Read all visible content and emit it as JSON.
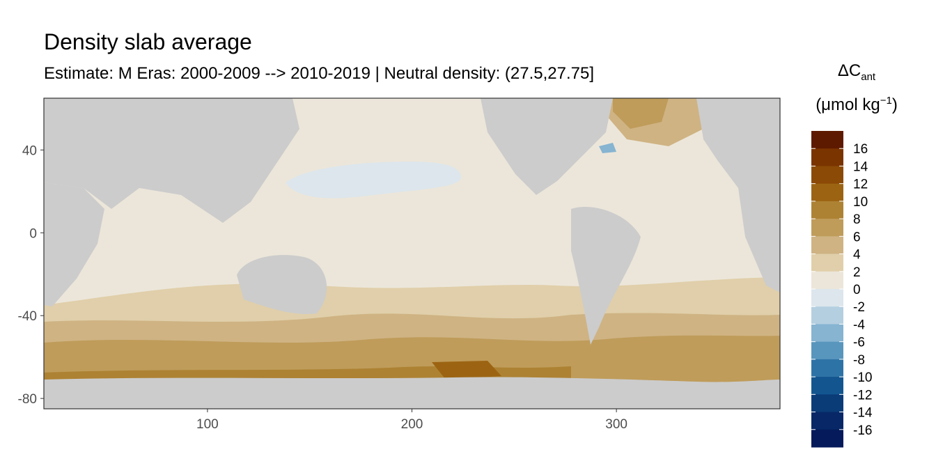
{
  "title": "Density slab average",
  "subtitle": "Estimate: M Eras: 2000-2009 --> 2010-2019 | Neutral density: (27.5,27.75]",
  "legend": {
    "title_symbol": "ΔC",
    "title_sub": "ant",
    "unit_prefix": "(μmol kg",
    "unit_sup": "−1",
    "unit_suffix": ")",
    "labels": [
      "16",
      "14",
      "12",
      "10",
      "8",
      "6",
      "4",
      "2",
      "0",
      "-2",
      "-4",
      "-6",
      "-8",
      "-10",
      "-12",
      "-14",
      "-16"
    ],
    "colors": [
      "#5e1a00",
      "#7a3400",
      "#8b4a05",
      "#9c6412",
      "#ad8233",
      "#bf9c5a",
      "#cfb383",
      "#e0cfaa",
      "#ece6da",
      "#dce6ec",
      "#b4cfe0",
      "#86b4d1",
      "#5896bd",
      "#2e73a6",
      "#13568f",
      "#0a3c78",
      "#072766",
      "#041a5a"
    ]
  },
  "chart_data": {
    "type": "heatmap",
    "title": "Density slab average",
    "subtitle": "Estimate: M Eras: 2000-2009 --> 2010-2019 | Neutral density: (27.5,27.75]",
    "xlim": [
      20,
      380
    ],
    "ylim": [
      -85,
      65
    ],
    "x_ticks": [
      100,
      200,
      300
    ],
    "y_ticks": [
      40,
      0,
      -40,
      -80
    ],
    "land_color": "#cccccc",
    "legend_placement": "right"
  }
}
